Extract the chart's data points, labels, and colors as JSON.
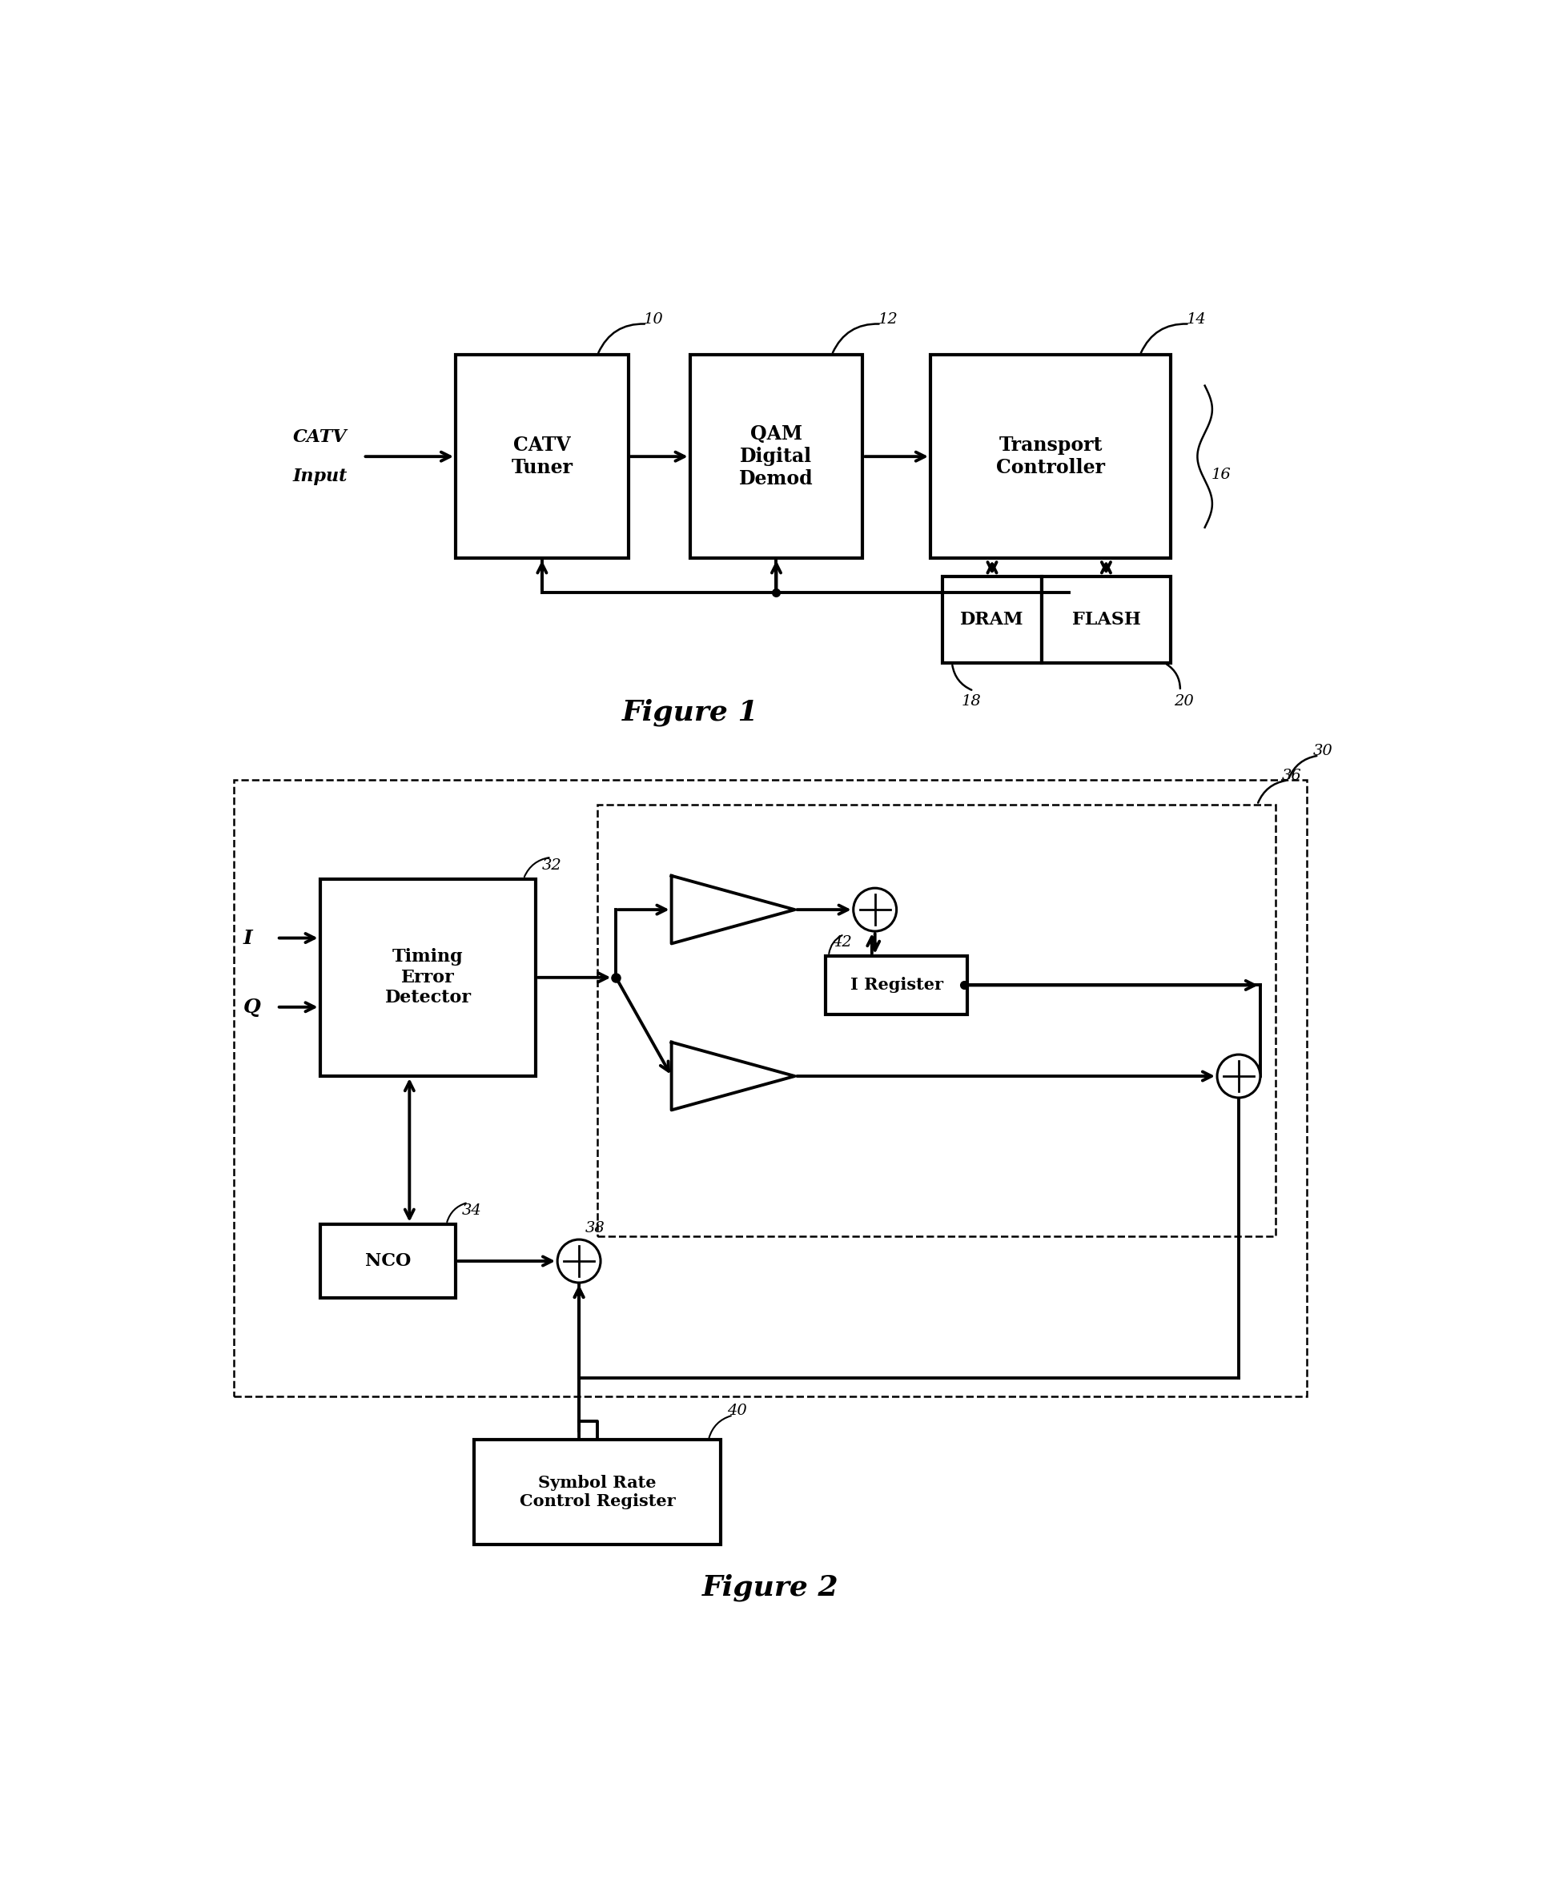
{
  "fig_width": 19.27,
  "fig_height": 23.58,
  "bg_color": "#ffffff",
  "fig1_title": "Figure 1",
  "fig2_title": "Figure 2",
  "fig1_labels": {
    "catv_input_line1": "CATV",
    "catv_input_line2": "Input",
    "catv_tuner": "CATV\nTuner",
    "qam_demod": "QAM\nDigital\nDemod",
    "transport": "Transport\nController",
    "dram": "DRAM",
    "flash": "FLASH",
    "ref10": "10",
    "ref12": "12",
    "ref14": "14",
    "ref16": "16",
    "ref18": "18",
    "ref20": "20"
  },
  "fig2_labels": {
    "I": "I",
    "Q": "Q",
    "timing": "Timing\nError\nDetector",
    "nco": "NCO",
    "i_register": "I Register",
    "symbol_rate": "Symbol Rate\nControl Register",
    "ref30": "30",
    "ref32": "32",
    "ref34": "34",
    "ref36": "36",
    "ref38": "38",
    "ref40": "40",
    "ref42": "42"
  }
}
